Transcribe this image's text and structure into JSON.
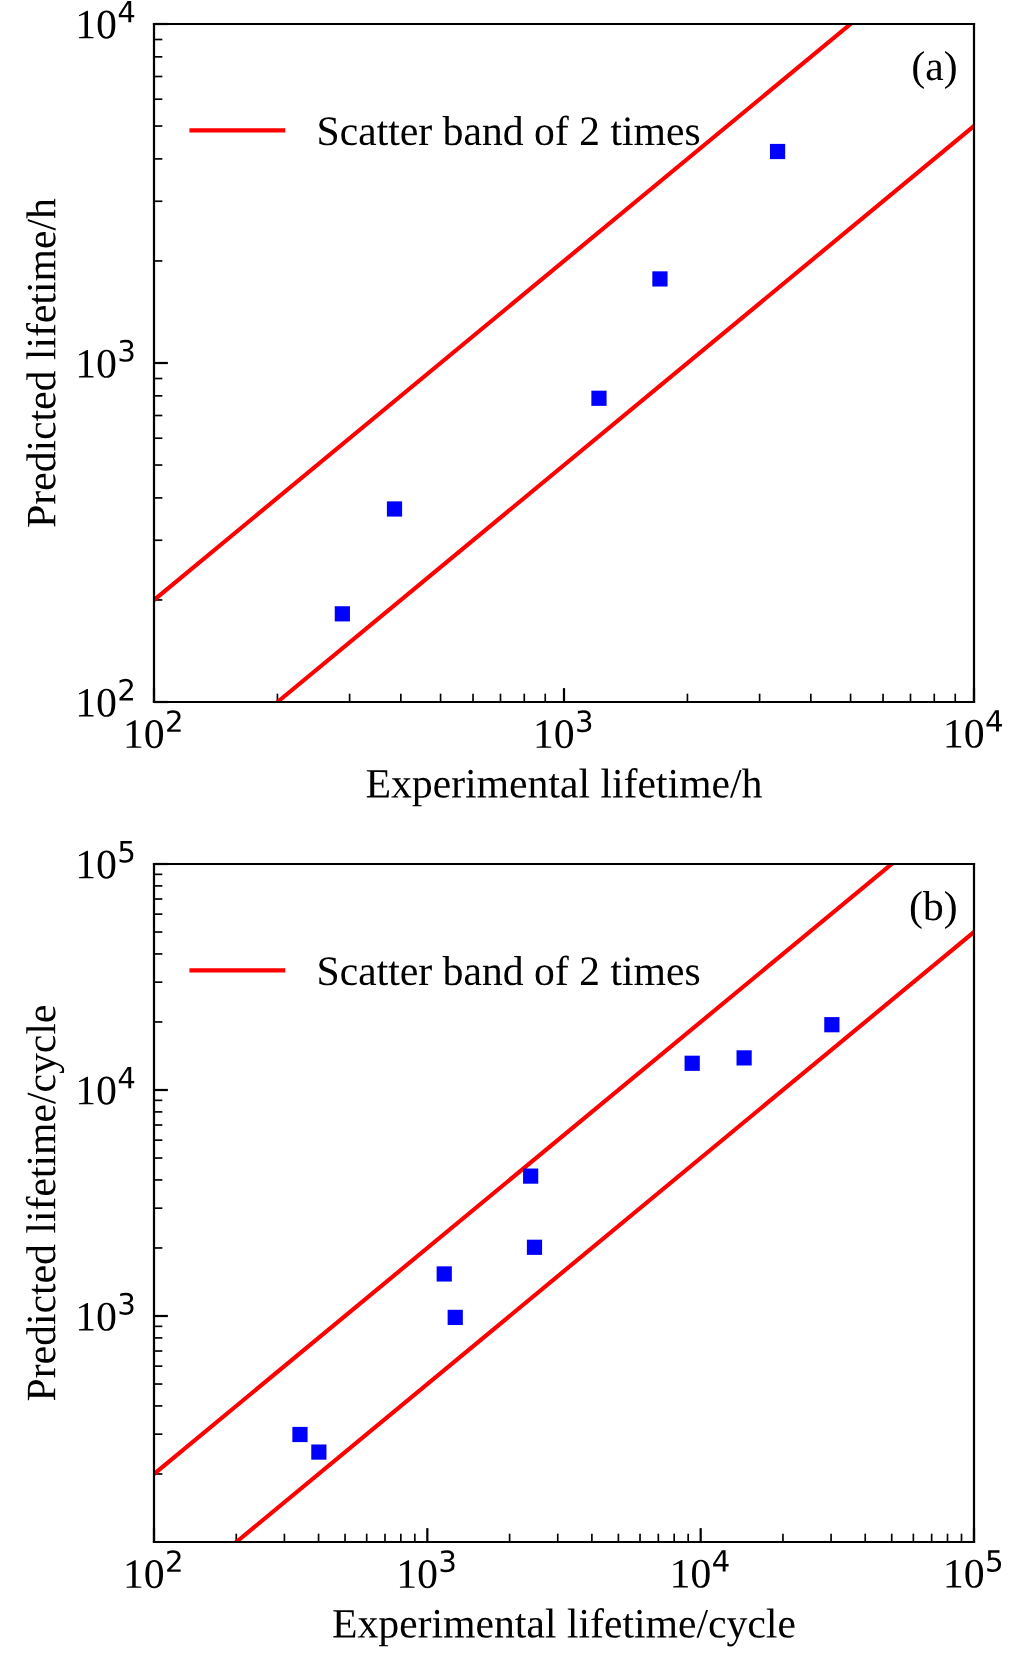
{
  "chart_data": [
    {
      "type": "scatter",
      "xlabel": "Experimental lifetime/h",
      "ylabel": "Predicted lifetime/h",
      "log": "xy",
      "annotations": [
        "(a)"
      ],
      "xlim": [
        100,
        10000
      ],
      "ylim": [
        100,
        10000
      ],
      "xticks": [
        {
          "value": 100,
          "label": "10$^{2}$"
        },
        {
          "value": 1000,
          "label": "10$^{3}$"
        },
        {
          "value": 10000,
          "label": "10$^{4}$"
        }
      ],
      "yticks": [
        {
          "value": 100,
          "label": "10$^{2}$"
        },
        {
          "value": 1000,
          "label": "10$^{3}$"
        },
        {
          "value": 10000,
          "label": "10$^{4}$"
        }
      ],
      "legend": "top left",
      "grid": false,
      "series": [
        {
          "name": "Scatter band of 2 times",
          "type": "line",
          "color": "#ff0000",
          "marker": "none",
          "line_style": "solid",
          "x": [
            100,
            5000
          ],
          "values": [
            200,
            10000
          ]
        },
        {
          "type": "line",
          "color": "#ff0000",
          "marker": "none",
          "line_style": "solid",
          "x": [
            200,
            10000
          ],
          "values": [
            100,
            5000
          ]
        },
        {
          "color": "#0000ff",
          "marker": "square",
          "x": [
            288,
            386,
            1217,
            1714,
            3318
          ],
          "values": [
            182,
            371,
            787,
            1770,
            4206
          ]
        }
      ]
    },
    {
      "type": "scatter",
      "xlabel": "Experimental lifetime/cycle",
      "ylabel": "Predicted lifetime/cycle",
      "log": "xy",
      "annotations": [
        "(b)"
      ],
      "xlim": [
        100,
        100000
      ],
      "ylim": [
        100,
        100000
      ],
      "xticks": [
        {
          "value": 100,
          "label": "10$^{2}$"
        },
        {
          "value": 1000,
          "label": "10$^{3}$"
        },
        {
          "value": 10000,
          "label": "10$^{4}$"
        },
        {
          "value": 100000,
          "label": "10$^{5}$"
        }
      ],
      "yticks": [
        {
          "value": 1000,
          "label": "10$^{3}$"
        },
        {
          "value": 10000,
          "label": "10$^{4}$"
        },
        {
          "value": 100000,
          "label": "10$^{5}$"
        }
      ],
      "legend": "top left",
      "grid": false,
      "series": [
        {
          "name": "Scatter band of 2 times",
          "type": "line",
          "color": "#ff0000",
          "marker": "none",
          "line_style": "solid",
          "x": [
            100,
            50000
          ],
          "values": [
            200,
            100000
          ]
        },
        {
          "type": "line",
          "color": "#ff0000",
          "marker": "none",
          "line_style": "solid",
          "x": [
            200,
            100000
          ],
          "values": [
            100,
            50000
          ]
        },
        {
          "color": "#0000ff",
          "marker": "square",
          "x": [
            342,
            401,
            1153,
            1265,
            2388,
            2466,
            9310,
            14420,
            30200
          ],
          "values": [
            299,
            250,
            1535,
            986,
            4159,
            2014,
            13130,
            13870,
            19450
          ]
        }
      ]
    }
  ]
}
